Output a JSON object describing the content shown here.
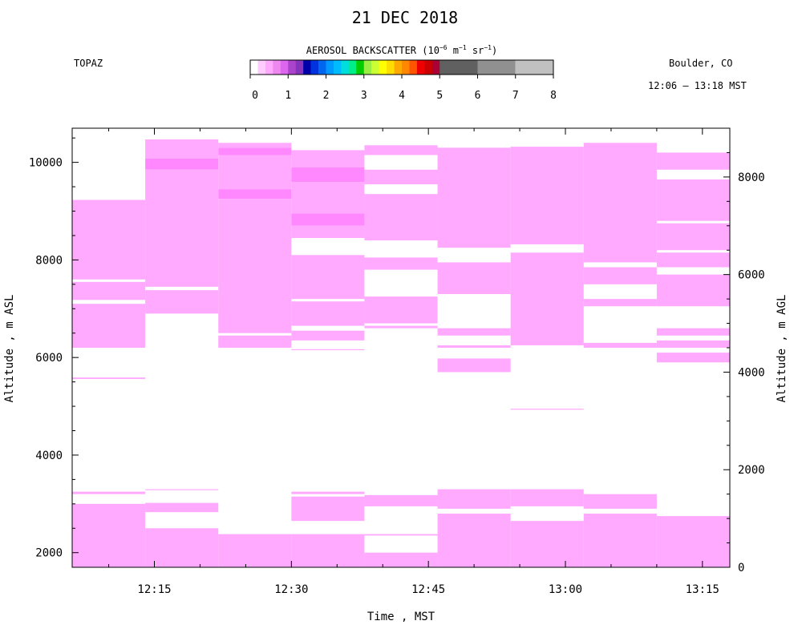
{
  "chart_data": {
    "type": "heatmap",
    "title": "21 DEC 2018",
    "instrument": "TOPAZ",
    "location": "Boulder, CO",
    "time_range": "12:06 – 13:18 MST",
    "xlabel": "Time , MST",
    "ylabel_left": "Altitude , m ASL",
    "ylabel_right": "Altitude , m AGL",
    "colorbar": {
      "label_parts": [
        "AEROSOL BACKSCATTER (10",
        "−6",
        " m",
        "−1",
        " sr",
        "−1",
        ")"
      ],
      "ticks": [
        0,
        1,
        2,
        3,
        4,
        5,
        6,
        7,
        8
      ],
      "fine_colors": [
        "#ffffff",
        "#ffccff",
        "#ffaaff",
        "#ee88ee",
        "#dd66ee",
        "#aa44cc",
        "#8833bb",
        "#0000aa",
        "#0033dd",
        "#0066ee",
        "#0099ff",
        "#00bbff",
        "#00dddd",
        "#00ee88",
        "#00cc00",
        "#99ee44",
        "#ccff33",
        "#ffff00",
        "#ffdd00",
        "#ffaa00",
        "#ff8800",
        "#ff5500",
        "#ee0000",
        "#cc0000",
        "#aa0033"
      ],
      "coarse_colors": [
        "#606060",
        "#909090",
        "#c0c0c0"
      ]
    },
    "x_ticks": [
      "12:15",
      "12:30",
      "12:45",
      "13:00",
      "13:15"
    ],
    "y_left_ticks": [
      2000,
      4000,
      6000,
      8000,
      10000
    ],
    "y_left_range": [
      1700,
      10700
    ],
    "y_right_ticks": [
      0,
      2000,
      4000,
      6000,
      8000
    ],
    "surface_elevation_m": 1700,
    "time_range_min": [
      726,
      798
    ],
    "colors": {
      "light": "#ffaaff",
      "medium": "#ff88ff"
    },
    "columns": [
      {
        "t": [
          726,
          734
        ],
        "layers": [
          [
            9230,
            7600,
            "light"
          ],
          [
            7550,
            7180,
            "light"
          ],
          [
            7100,
            6200,
            "light"
          ],
          [
            5590,
            5560,
            "light"
          ],
          [
            3250,
            3200,
            "light"
          ],
          [
            3000,
            1700,
            "light"
          ]
        ]
      },
      {
        "t": [
          734,
          742
        ],
        "layers": [
          [
            10470,
            10080,
            "light"
          ],
          [
            10080,
            9850,
            "medium"
          ],
          [
            9850,
            7450,
            "light"
          ],
          [
            7380,
            6900,
            "light"
          ],
          [
            3300,
            3280,
            "light"
          ],
          [
            3020,
            2830,
            "light"
          ],
          [
            2500,
            1700,
            "light"
          ]
        ]
      },
      {
        "t": [
          742,
          750
        ],
        "layers": [
          [
            10400,
            10300,
            "light"
          ],
          [
            10300,
            10150,
            "medium"
          ],
          [
            10150,
            9450,
            "light"
          ],
          [
            9450,
            9250,
            "medium"
          ],
          [
            9250,
            6500,
            "light"
          ],
          [
            6450,
            6200,
            "light"
          ],
          [
            2380,
            1700,
            "light"
          ]
        ]
      },
      {
        "t": [
          750,
          758
        ],
        "layers": [
          [
            10250,
            9900,
            "light"
          ],
          [
            9900,
            9600,
            "medium"
          ],
          [
            9600,
            8950,
            "light"
          ],
          [
            8950,
            8700,
            "medium"
          ],
          [
            8700,
            8450,
            "light"
          ],
          [
            8100,
            7200,
            "light"
          ],
          [
            7150,
            6650,
            "light"
          ],
          [
            6550,
            6350,
            "light"
          ],
          [
            6170,
            6150,
            "light"
          ],
          [
            3250,
            3200,
            "light"
          ],
          [
            3150,
            2650,
            "light"
          ],
          [
            2380,
            1700,
            "light"
          ]
        ]
      },
      {
        "t": [
          758,
          766
        ],
        "layers": [
          [
            10350,
            10150,
            "light"
          ],
          [
            9850,
            9550,
            "light"
          ],
          [
            9350,
            8400,
            "light"
          ],
          [
            8050,
            7800,
            "light"
          ],
          [
            7250,
            6700,
            "light"
          ],
          [
            6650,
            6600,
            "light"
          ],
          [
            3180,
            2950,
            "light"
          ],
          [
            2380,
            2350,
            "light"
          ],
          [
            2000,
            1700,
            "light"
          ]
        ]
      },
      {
        "t": [
          766,
          774
        ],
        "layers": [
          [
            10300,
            8250,
            "light"
          ],
          [
            7950,
            7300,
            "light"
          ],
          [
            6600,
            6450,
            "light"
          ],
          [
            6250,
            6200,
            "light"
          ],
          [
            5980,
            5700,
            "light"
          ],
          [
            3300,
            2900,
            "light"
          ],
          [
            2800,
            1700,
            "light"
          ]
        ]
      },
      {
        "t": [
          774,
          782
        ],
        "layers": [
          [
            10320,
            8320,
            "light"
          ],
          [
            8150,
            6250,
            "light"
          ],
          [
            4950,
            4930,
            "light"
          ],
          [
            3300,
            2950,
            "light"
          ],
          [
            2650,
            1700,
            "light"
          ]
        ]
      },
      {
        "t": [
          782,
          790
        ],
        "layers": [
          [
            10400,
            7950,
            "light"
          ],
          [
            7850,
            7500,
            "light"
          ],
          [
            7200,
            7050,
            "light"
          ],
          [
            6300,
            6200,
            "light"
          ],
          [
            3200,
            2900,
            "light"
          ],
          [
            2800,
            1700,
            "light"
          ]
        ]
      },
      {
        "t": [
          790,
          798
        ],
        "layers": [
          [
            10200,
            9850,
            "light"
          ],
          [
            9650,
            8800,
            "light"
          ],
          [
            8750,
            8200,
            "light"
          ],
          [
            8150,
            7850,
            "light"
          ],
          [
            7700,
            7050,
            "light"
          ],
          [
            6600,
            6450,
            "light"
          ],
          [
            6350,
            6200,
            "light"
          ],
          [
            6100,
            5900,
            "light"
          ],
          [
            2750,
            1700,
            "light"
          ]
        ]
      }
    ]
  }
}
